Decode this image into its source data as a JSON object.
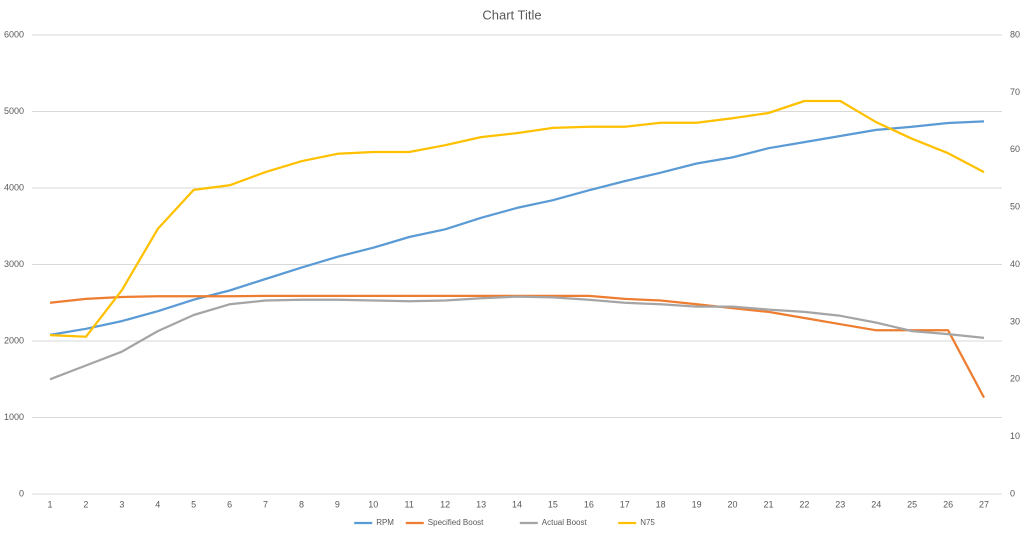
{
  "chart_data": {
    "type": "line",
    "title": "Chart Title",
    "categories": [
      "1",
      "2",
      "3",
      "4",
      "5",
      "6",
      "7",
      "8",
      "9",
      "10",
      "11",
      "12",
      "13",
      "14",
      "15",
      "16",
      "17",
      "18",
      "19",
      "20",
      "21",
      "22",
      "23",
      "24",
      "25",
      "26",
      "27"
    ],
    "series": [
      {
        "name": "RPM",
        "color": "#5b9bd5",
        "values": [
          2080,
          2160,
          2260,
          2390,
          2540,
          2660,
          2810,
          2960,
          3100,
          3220,
          3360,
          3460,
          3610,
          3740,
          3840,
          3970,
          4090,
          4200,
          4320,
          4400,
          4520,
          4600,
          4680,
          4760,
          4800,
          4850,
          4870
        ]
      },
      {
        "name": "Specified Boost",
        "color": "#ed7d31",
        "values": [
          2500,
          2550,
          2575,
          2585,
          2585,
          2585,
          2590,
          2590,
          2590,
          2590,
          2590,
          2590,
          2590,
          2590,
          2590,
          2590,
          2550,
          2530,
          2480,
          2430,
          2380,
          2300,
          2220,
          2140,
          2140,
          2140,
          1260
        ]
      },
      {
        "name": "Actual Boost",
        "color": "#a5a5a5",
        "values": [
          1500,
          1680,
          1860,
          2130,
          2340,
          2480,
          2530,
          2540,
          2540,
          2530,
          2520,
          2530,
          2560,
          2580,
          2570,
          2540,
          2500,
          2480,
          2450,
          2450,
          2410,
          2380,
          2330,
          2240,
          2130,
          2090,
          2040
        ]
      },
      {
        "name": "N75",
        "color": "#ffc000",
        "axis": "y2",
        "values": [
          27.7,
          27.4,
          35.5,
          46.2,
          53,
          53.8,
          56.1,
          58,
          59.3,
          59.6,
          59.6,
          60.8,
          62.2,
          62.9,
          63.8,
          64,
          64,
          64.7,
          64.7,
          65.5,
          66.4,
          68.5,
          68.5,
          64.8,
          61.9,
          59.4,
          56.1
        ]
      }
    ],
    "ylim": [
      0,
      6000
    ],
    "yticks": [
      0,
      1000,
      2000,
      3000,
      4000,
      5000,
      6000
    ],
    "y2lim": [
      0,
      80
    ],
    "y2ticks": [
      0,
      10,
      20,
      30,
      40,
      50,
      60,
      70,
      80
    ],
    "grid": true,
    "legend": "bottom"
  }
}
